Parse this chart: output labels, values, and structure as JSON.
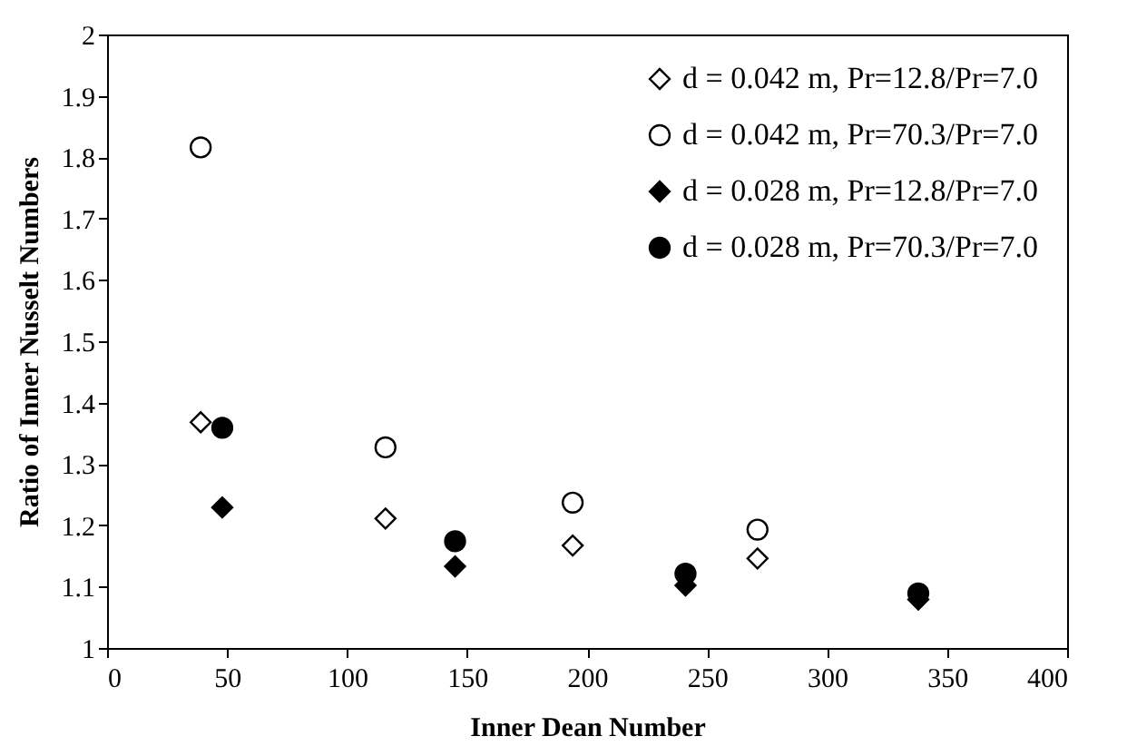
{
  "chart_data": {
    "type": "scatter",
    "xlabel": "Inner Dean Number",
    "ylabel": "Ratio of Inner Nusselt Numbers",
    "xlim": [
      0,
      400
    ],
    "xticks": [
      0,
      50,
      100,
      150,
      200,
      250,
      300,
      350,
      400
    ],
    "ylim": [
      1,
      2
    ],
    "yticks": [
      1,
      1.1,
      1.2,
      1.3,
      1.4,
      1.5,
      1.6,
      1.7,
      1.8,
      1.9,
      2
    ],
    "grid": false,
    "legend": "top right",
    "series": [
      {
        "name": "d = 0.042 m, Pr=12.8/Pr=7.0",
        "color": "#ffffff",
        "marker": "diamond",
        "x": [
          39,
          116,
          194,
          271
        ],
        "values": [
          1.368,
          1.211,
          1.167,
          1.146
        ]
      },
      {
        "name": "d = 0.042 m, Pr=70.3/Pr=7.0",
        "color": "#ffffff",
        "marker": "circle",
        "x": [
          39,
          116,
          194,
          271
        ],
        "values": [
          1.816,
          1.327,
          1.237,
          1.193
        ]
      },
      {
        "name": "d = 0.028 m, Pr=12.8/Pr=7.0",
        "color": "#000000",
        "marker": "diamond",
        "x": [
          48,
          145,
          241,
          338
        ],
        "values": [
          1.229,
          1.133,
          1.102,
          1.079
        ]
      },
      {
        "name": "d = 0.028 m, Pr=70.3/Pr=7.0",
        "color": "#000000",
        "marker": "circle",
        "x": [
          48,
          145,
          241,
          338
        ],
        "values": [
          1.359,
          1.174,
          1.121,
          1.089
        ]
      }
    ]
  }
}
